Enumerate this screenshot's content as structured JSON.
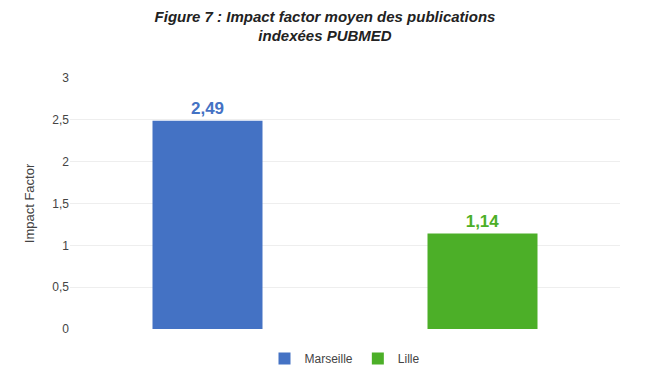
{
  "chart_data": {
    "type": "bar",
    "title": "Figure 7 : Impact factor moyen des publications\nindexées PUBMED",
    "categories": [
      "Marseille",
      "Lille"
    ],
    "values": [
      2.49,
      1.14
    ],
    "value_labels": [
      "2,49",
      "1,14"
    ],
    "colors": [
      "#4472C4",
      "#4CAF28"
    ],
    "ylabel": "Impact Factor",
    "ylim": [
      0,
      3
    ],
    "yticks": [
      0,
      {
        "value": 0.5,
        "label": "0,5"
      },
      1,
      {
        "value": 1.5,
        "label": "1,5"
      },
      2,
      {
        "value": 2.5,
        "label": "2,5"
      },
      3
    ],
    "grid": true,
    "legend": "bottom",
    "data_labels": true,
    "tick_labels": "y"
  }
}
